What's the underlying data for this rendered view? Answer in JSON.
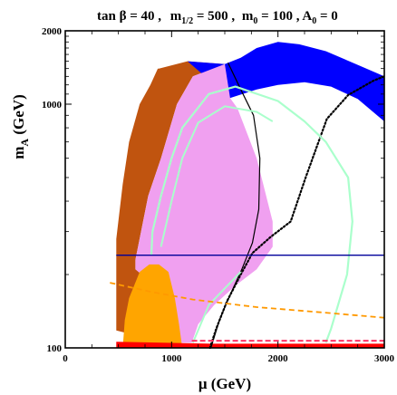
{
  "chart_data": {
    "type": "area",
    "title_parts": {
      "tanb": "tan β = 40 ,",
      "m12_a": "m",
      "m12_sub": "1/2",
      "m12_b": " = 500 ,",
      "m0_a": "m",
      "m0_sub": "0",
      "m0_b": " = 100 , ",
      "a0_a": "A",
      "a0_sub": "0",
      "a0_b": " = 0"
    },
    "xlabel": "μ (GeV)",
    "ylabel_main": "m",
    "ylabel_sub": "A",
    "ylabel_unit": " (GeV)",
    "xlim": [
      0,
      3000
    ],
    "ylim": [
      100,
      2000
    ],
    "y_scale": "log",
    "x_ticks": [
      "0",
      "1000",
      "2000",
      "3000"
    ],
    "x_tick_values": [
      0,
      1000,
      2000,
      3000
    ],
    "y_ticks": [
      "100",
      "1000",
      "2000"
    ],
    "y_tick_values": [
      100,
      1000,
      2000
    ],
    "colors": {
      "brown": "#c0540f",
      "blue": "#0000ff",
      "pink": "#f0a0f0",
      "orange": "#ffa500",
      "red": "#ff0000",
      "mint": "#aaffcc",
      "orange_dash": "#ff9900",
      "red_dash": "#ff3366",
      "hline": "#00009a"
    },
    "regions": [
      {
        "name": "brown-band",
        "points": [
          [
            930,
            105
          ],
          [
            480,
            118
          ],
          [
            480,
            280
          ],
          [
            540,
            470
          ],
          [
            600,
            700
          ],
          [
            700,
            1000
          ],
          [
            800,
            1200
          ],
          [
            870,
            1400
          ],
          [
            880,
            1400
          ],
          [
            1150,
            1500
          ],
          [
            1500,
            1460
          ],
          [
            1200,
            1300
          ],
          [
            1050,
            1000
          ],
          [
            900,
            600
          ],
          [
            780,
            420
          ],
          [
            660,
            230
          ],
          [
            660,
            210
          ],
          [
            750,
            195
          ],
          [
            930,
            160
          ],
          [
            1060,
            130
          ],
          [
            1080,
            105
          ]
        ]
      },
      {
        "name": "blue-band",
        "points": [
          [
            1150,
            1500
          ],
          [
            1500,
            1460
          ],
          [
            1650,
            1550
          ],
          [
            1800,
            1700
          ],
          [
            2000,
            1800
          ],
          [
            2200,
            1760
          ],
          [
            2450,
            1650
          ],
          [
            2750,
            1450
          ],
          [
            3000,
            1300
          ],
          [
            3000,
            850
          ],
          [
            2750,
            1050
          ],
          [
            2500,
            1180
          ],
          [
            2250,
            1230
          ],
          [
            2000,
            1200
          ],
          [
            1800,
            1150
          ],
          [
            1550,
            1060
          ]
        ]
      },
      {
        "name": "pink-region",
        "points": [
          [
            990,
            105
          ],
          [
            1190,
            105
          ],
          [
            1250,
            125
          ],
          [
            1400,
            150
          ],
          [
            1600,
            180
          ],
          [
            1800,
            210
          ],
          [
            1950,
            260
          ],
          [
            1950,
            330
          ],
          [
            1800,
            600
          ],
          [
            1620,
            960
          ],
          [
            1550,
            1060
          ],
          [
            1500,
            1460
          ],
          [
            1200,
            1300
          ],
          [
            1050,
            1000
          ],
          [
            900,
            600
          ],
          [
            780,
            420
          ],
          [
            660,
            230
          ],
          [
            660,
            210
          ],
          [
            750,
            195
          ],
          [
            930,
            160
          ]
        ]
      },
      {
        "name": "orange-region",
        "points": [
          [
            540,
            100
          ],
          [
            1100,
            100
          ],
          [
            1070,
            125
          ],
          [
            1030,
            160
          ],
          [
            970,
            205
          ],
          [
            880,
            220
          ],
          [
            790,
            220
          ],
          [
            700,
            205
          ],
          [
            600,
            160
          ],
          [
            560,
            130
          ]
        ]
      },
      {
        "name": "red-strip",
        "points": [
          [
            480,
            100
          ],
          [
            3000,
            100
          ],
          [
            3000,
            104
          ],
          [
            1380,
            104
          ],
          [
            480,
            106
          ]
        ]
      }
    ],
    "lines": [
      {
        "name": "black-solid-curve",
        "points": [
          [
            1370,
            100
          ],
          [
            1450,
            130
          ],
          [
            1550,
            165
          ],
          [
            1660,
            210
          ],
          [
            1760,
            270
          ],
          [
            1820,
            370
          ],
          [
            1830,
            600
          ],
          [
            1770,
            900
          ],
          [
            1650,
            1150
          ],
          [
            1530,
            1480
          ]
        ]
      },
      {
        "name": "black-dotted-curve",
        "points": [
          [
            1360,
            100
          ],
          [
            1420,
            120
          ],
          [
            1520,
            155
          ],
          [
            1650,
            200
          ],
          [
            1760,
            245
          ],
          [
            1930,
            285
          ],
          [
            2120,
            330
          ],
          [
            2260,
            500
          ],
          [
            2460,
            870
          ],
          [
            2660,
            1090
          ],
          [
            2900,
            1250
          ],
          [
            3000,
            1300
          ]
        ]
      },
      {
        "name": "mint-contour-outer",
        "points": [
          [
            810,
            240
          ],
          [
            820,
            300
          ],
          [
            900,
            420
          ],
          [
            1000,
            600
          ],
          [
            1100,
            800
          ],
          [
            1350,
            1100
          ],
          [
            1600,
            1180
          ],
          [
            2000,
            1030
          ],
          [
            2250,
            850
          ],
          [
            2450,
            700
          ],
          [
            2660,
            500
          ],
          [
            2700,
            330
          ],
          [
            2650,
            200
          ],
          [
            2500,
            120
          ],
          [
            2450,
            105
          ]
        ]
      },
      {
        "name": "mint-contour-inner",
        "points": [
          [
            900,
            260
          ],
          [
            1000,
            400
          ],
          [
            1100,
            600
          ],
          [
            1250,
            840
          ],
          [
            1500,
            980
          ],
          [
            1800,
            930
          ],
          [
            1950,
            850
          ]
        ]
      },
      {
        "name": "mint-contour-bottom",
        "points": [
          [
            1200,
            105
          ],
          [
            1350,
            150
          ],
          [
            1650,
            205
          ]
        ]
      },
      {
        "name": "orange-dashed-line",
        "points": [
          [
            420,
            185
          ],
          [
            800,
            170
          ],
          [
            1200,
            158
          ],
          [
            1800,
            147
          ],
          [
            2400,
            140
          ],
          [
            3000,
            133
          ]
        ]
      },
      {
        "name": "red-dashed-line",
        "points": [
          [
            1190,
            107
          ],
          [
            3000,
            107
          ]
        ]
      },
      {
        "name": "navy-horizontal-line",
        "points": [
          [
            480,
            240
          ],
          [
            3000,
            240
          ]
        ]
      }
    ]
  }
}
